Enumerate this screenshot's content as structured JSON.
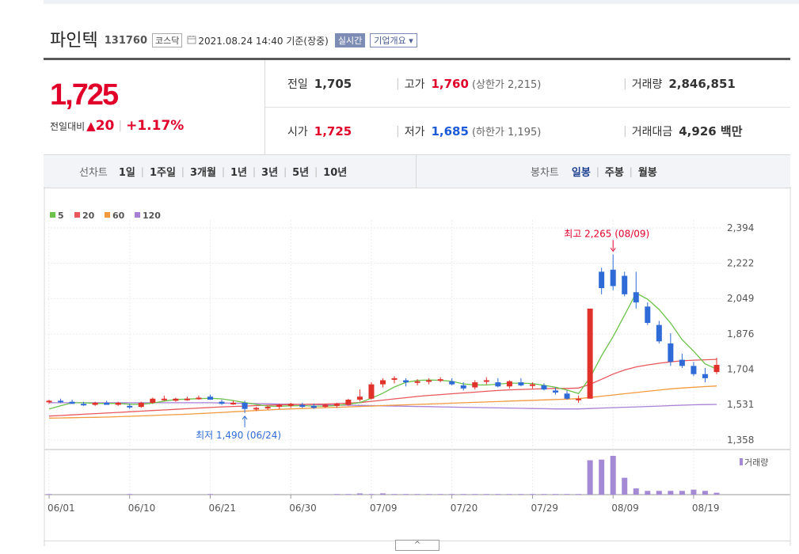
{
  "header": {
    "stock_name": "파인텍",
    "stock_code": "131760",
    "market": "코스닥",
    "datetime": "2021.08.24 14:40",
    "basis": "기준(장중)",
    "realtime_btn": "실시간",
    "company_btn": "기업개요",
    "company_arrow": "▾"
  },
  "price": {
    "current": "1,725",
    "change_label": "전일대비",
    "change_arrow": "▲",
    "change": "20",
    "sep": "|",
    "change_pct": "+1.17%"
  },
  "stats": {
    "prev_label": "전일",
    "prev": "1,705",
    "high_label": "고가",
    "high": "1,760",
    "upper_limit": "(상한가 2,215)",
    "volume_label": "거래량",
    "volume": "2,846,851",
    "open_label": "시가",
    "open": "1,725",
    "low_label": "저가",
    "low": "1,685",
    "lower_limit": "(하한가 1,195)",
    "amount_label": "거래대금",
    "amount": "4,926 백만",
    "sep": "|"
  },
  "toolbar": {
    "line_chart_label": "선차트",
    "periods": [
      "1일",
      "1주일",
      "3개월",
      "1년",
      "3년",
      "5년",
      "10년"
    ],
    "candle_label": "봉차트",
    "candle_periods": [
      "일봉",
      "주봉",
      "월봉"
    ],
    "active_candle": "일봉",
    "sep": "|"
  },
  "colors": {
    "up": "#e0312b",
    "down": "#2f6bd6",
    "ma5": "#6cc24a",
    "ma20": "#e8575c",
    "ma60": "#f39a3e",
    "ma120": "#a87fd6",
    "volume": "#a48ad4"
  },
  "chart_data": {
    "type": "candlestick",
    "legend": [
      {
        "name": "5",
        "color": "#6cc24a"
      },
      {
        "name": "20",
        "color": "#e8575c"
      },
      {
        "name": "60",
        "color": "#f39a3e"
      },
      {
        "name": "120",
        "color": "#a87fd6"
      }
    ],
    "y_ticks": [
      "2,394",
      "2,222",
      "2,049",
      "1,876",
      "1,704",
      "1,531",
      "1,358"
    ],
    "y_tick_values": [
      2394,
      2222,
      2049,
      1876,
      1704,
      1531,
      1358
    ],
    "ylim": [
      1358,
      2394
    ],
    "x_ticks": [
      "06/01",
      "06/10",
      "06/21",
      "06/30",
      "07/09",
      "07/20",
      "07/29",
      "08/09",
      "08/19"
    ],
    "x_tick_index": [
      0,
      7,
      14,
      21,
      28,
      35,
      42,
      49,
      56
    ],
    "volume_label": "거래량",
    "high_annotation": {
      "text": "최고 2,265 (08/09)",
      "index": 49,
      "value": 2265
    },
    "low_annotation": {
      "text": "최저 1,490 (06/24)",
      "index": 17,
      "value": 1490
    },
    "ohlc": [
      [
        1545,
        1555,
        1535,
        1550
      ],
      [
        1550,
        1560,
        1540,
        1545
      ],
      [
        1545,
        1555,
        1535,
        1535
      ],
      [
        1535,
        1545,
        1525,
        1530
      ],
      [
        1530,
        1545,
        1525,
        1540
      ],
      [
        1540,
        1550,
        1530,
        1530
      ],
      [
        1530,
        1545,
        1525,
        1540
      ],
      [
        1525,
        1535,
        1510,
        1520
      ],
      [
        1520,
        1545,
        1515,
        1540
      ],
      [
        1540,
        1565,
        1535,
        1560
      ],
      [
        1555,
        1575,
        1550,
        1560
      ],
      [
        1550,
        1565,
        1545,
        1560
      ],
      [
        1555,
        1570,
        1550,
        1560
      ],
      [
        1565,
        1575,
        1555,
        1565
      ],
      [
        1570,
        1580,
        1555,
        1555
      ],
      [
        1545,
        1555,
        1530,
        1535
      ],
      [
        1540,
        1550,
        1530,
        1540
      ],
      [
        1540,
        1550,
        1490,
        1510
      ],
      [
        1510,
        1520,
        1500,
        1515
      ],
      [
        1515,
        1525,
        1505,
        1520
      ],
      [
        1520,
        1535,
        1510,
        1530
      ],
      [
        1525,
        1540,
        1515,
        1535
      ],
      [
        1530,
        1540,
        1515,
        1520
      ],
      [
        1525,
        1535,
        1510,
        1515
      ],
      [
        1520,
        1535,
        1515,
        1530
      ],
      [
        1525,
        1540,
        1515,
        1535
      ],
      [
        1530,
        1560,
        1525,
        1555
      ],
      [
        1555,
        1605,
        1545,
        1570
      ],
      [
        1560,
        1640,
        1555,
        1630
      ],
      [
        1630,
        1660,
        1615,
        1650
      ],
      [
        1655,
        1670,
        1635,
        1660
      ],
      [
        1650,
        1660,
        1620,
        1640
      ],
      [
        1640,
        1655,
        1625,
        1645
      ],
      [
        1645,
        1660,
        1630,
        1650
      ],
      [
        1650,
        1665,
        1640,
        1655
      ],
      [
        1645,
        1660,
        1625,
        1630
      ],
      [
        1625,
        1640,
        1600,
        1610
      ],
      [
        1615,
        1650,
        1605,
        1640
      ],
      [
        1645,
        1665,
        1630,
        1650
      ],
      [
        1640,
        1660,
        1615,
        1620
      ],
      [
        1620,
        1650,
        1610,
        1645
      ],
      [
        1640,
        1660,
        1620,
        1625
      ],
      [
        1625,
        1640,
        1610,
        1630
      ],
      [
        1625,
        1635,
        1600,
        1605
      ],
      [
        1600,
        1615,
        1580,
        1590
      ],
      [
        1585,
        1600,
        1555,
        1560
      ],
      [
        1560,
        1575,
        1540,
        1560
      ],
      [
        1560,
        2000,
        1560,
        2000
      ],
      [
        2180,
        2200,
        2070,
        2100
      ],
      [
        2190,
        2265,
        2090,
        2110
      ],
      [
        2160,
        2180,
        2060,
        2070
      ],
      [
        2080,
        2180,
        2000,
        2030
      ],
      [
        2010,
        2030,
        1920,
        1930
      ],
      [
        1920,
        1940,
        1830,
        1840
      ],
      [
        1830,
        1880,
        1720,
        1740
      ],
      [
        1750,
        1780,
        1710,
        1720
      ],
      [
        1720,
        1740,
        1670,
        1680
      ],
      [
        1680,
        1710,
        1640,
        1660
      ],
      [
        1690,
        1760,
        1680,
        1725
      ]
    ],
    "ma5": [
      1510,
      1525,
      1540,
      1540,
      1537,
      1537,
      1537,
      1533,
      1533,
      1538,
      1548,
      1556,
      1558,
      1560,
      1562,
      1559,
      1551,
      1541,
      1532,
      1524,
      1523,
      1525,
      1526,
      1524,
      1524,
      1527,
      1533,
      1541,
      1562,
      1587,
      1617,
      1640,
      1649,
      1651,
      1650,
      1645,
      1632,
      1627,
      1627,
      1631,
      1636,
      1636,
      1634,
      1625,
      1616,
      1602,
      1585,
      1663,
      1770,
      1863,
      1968,
      2076,
      2046,
      1996,
      1929,
      1848,
      1792,
      1730,
      1705
    ],
    "ma20": [
      1475,
      1478,
      1481,
      1484,
      1487,
      1490,
      1493,
      1496,
      1499,
      1502,
      1505,
      1508,
      1511,
      1514,
      1517,
      1520,
      1522,
      1524,
      1526,
      1528,
      1530,
      1531,
      1532,
      1533,
      1534,
      1536,
      1538,
      1541,
      1547,
      1553,
      1559,
      1565,
      1571,
      1576,
      1580,
      1584,
      1588,
      1592,
      1596,
      1600,
      1603,
      1605,
      1607,
      1609,
      1610,
      1610,
      1612,
      1630,
      1655,
      1680,
      1700,
      1715,
      1725,
      1733,
      1740,
      1745,
      1748,
      1750,
      1752
    ],
    "ma60": [
      1465,
      1466,
      1467,
      1468,
      1469,
      1470,
      1472,
      1474,
      1476,
      1478,
      1480,
      1482,
      1484,
      1487,
      1490,
      1493,
      1496,
      1499,
      1502,
      1505,
      1508,
      1510,
      1512,
      1514,
      1516,
      1518,
      1520,
      1522,
      1524,
      1526,
      1528,
      1530,
      1532,
      1534,
      1536,
      1538,
      1540,
      1542,
      1544,
      1546,
      1548,
      1550,
      1552,
      1554,
      1556,
      1558,
      1560,
      1566,
      1572,
      1578,
      1584,
      1590,
      1596,
      1602,
      1608,
      1612,
      1616,
      1619,
      1622
    ],
    "ma120": [
      1540,
      1540,
      1540,
      1540,
      1540,
      1540,
      1540,
      1540,
      1540,
      1540,
      1540,
      1540,
      1540,
      1540,
      1540,
      1539,
      1538,
      1537,
      1536,
      1535,
      1534,
      1533,
      1532,
      1531,
      1530,
      1529,
      1528,
      1527,
      1526,
      1525,
      1524,
      1523,
      1522,
      1521,
      1520,
      1519,
      1518,
      1517,
      1516,
      1515,
      1514,
      1513,
      1512,
      1511,
      1510,
      1510,
      1510,
      1512,
      1514,
      1516,
      1518,
      1520,
      1522,
      1524,
      1526,
      1528,
      1530,
      1531,
      1532
    ],
    "volume": [
      1,
      0,
      0,
      0,
      0,
      0,
      0,
      1,
      0,
      0,
      0,
      0,
      0,
      0,
      1,
      0,
      0,
      0,
      0,
      0,
      0,
      0,
      0,
      0,
      0,
      1,
      1,
      2,
      1,
      2,
      1,
      1,
      1,
      1,
      1,
      1,
      1,
      1,
      1,
      1,
      1,
      1,
      1,
      1,
      1,
      1,
      1,
      55,
      56,
      62,
      27,
      10,
      6,
      6,
      6,
      6,
      8,
      6,
      3
    ]
  }
}
